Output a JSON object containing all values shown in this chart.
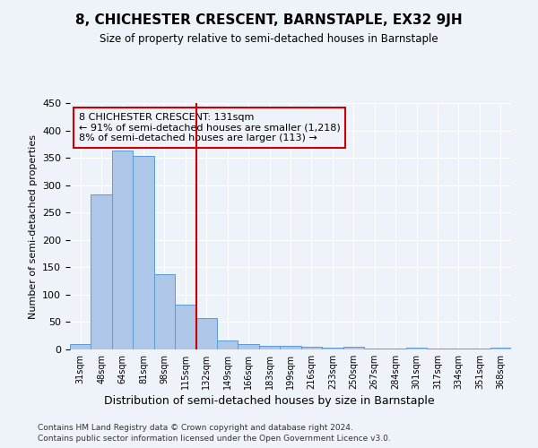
{
  "title": "8, CHICHESTER CRESCENT, BARNSTAPLE, EX32 9JH",
  "subtitle": "Size of property relative to semi-detached houses in Barnstaple",
  "xlabel": "Distribution of semi-detached houses by size in Barnstaple",
  "ylabel": "Number of semi-detached properties",
  "categories": [
    "31sqm",
    "48sqm",
    "64sqm",
    "81sqm",
    "98sqm",
    "115sqm",
    "132sqm",
    "149sqm",
    "166sqm",
    "183sqm",
    "199sqm",
    "216sqm",
    "233sqm",
    "250sqm",
    "267sqm",
    "284sqm",
    "301sqm",
    "317sqm",
    "334sqm",
    "351sqm",
    "368sqm"
  ],
  "values": [
    10,
    283,
    363,
    353,
    137,
    82,
    57,
    16,
    10,
    7,
    6,
    5,
    4,
    5,
    2,
    1,
    4,
    1,
    1,
    1,
    3
  ],
  "bar_color": "#aec6e8",
  "bar_edge_color": "#5b9bd5",
  "highlight_line_index": 6,
  "highlight_line_color": "#cc0000",
  "annotation_line1": "8 CHICHESTER CRESCENT: 131sqm",
  "annotation_line2": "← 91% of semi-detached houses are smaller (1,218)",
  "annotation_line3": "8% of semi-detached houses are larger (113) →",
  "annotation_box_color": "#cc0000",
  "footer_line1": "Contains HM Land Registry data © Crown copyright and database right 2024.",
  "footer_line2": "Contains public sector information licensed under the Open Government Licence v3.0.",
  "ylim": [
    0,
    450
  ],
  "bg_color": "#eef2f9",
  "grid_color": "#ffffff"
}
